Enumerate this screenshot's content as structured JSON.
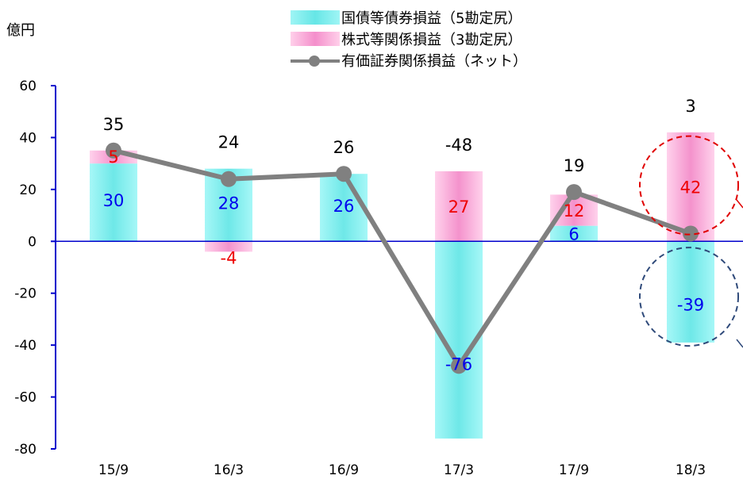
{
  "unit_label": "億円",
  "legend": {
    "bond": "国債等債券損益（5勘定尻）",
    "equity": "株式等関係損益（3勘定尻）",
    "net": "有価証券関係損益（ネット）"
  },
  "colors": {
    "bond": "#66e6e6",
    "equity": "#f48fcb",
    "net": "#808080",
    "axis": "#0000cc",
    "bond_label": "#0000ee",
    "equity_label": "#ee0000"
  },
  "chart_data": {
    "type": "bar",
    "stacked": true,
    "categories": [
      "15/9",
      "16/3",
      "16/9",
      "17/3",
      "17/9",
      "18/3"
    ],
    "series": [
      {
        "name": "国債等債券損益（5勘定尻）",
        "values": [
          30,
          28,
          26,
          -76,
          6,
          -39
        ]
      },
      {
        "name": "株式等関係損益（3勘定尻）",
        "values": [
          5,
          -4,
          null,
          27,
          12,
          42
        ]
      },
      {
        "name": "有価証券関係損益（ネット）",
        "type": "line",
        "values": [
          35,
          24,
          26,
          -48,
          19,
          3
        ]
      }
    ],
    "ylim": [
      -80,
      60
    ],
    "yticks": [
      "60",
      "40",
      "20",
      "0",
      "-20",
      "-40",
      "-60",
      "-80"
    ],
    "ylabel": "億円",
    "annotations": [
      "circle around 18/3 equity bar (red, dashed)",
      "circle around 18/3 bond bar (blue, dashed)"
    ]
  }
}
